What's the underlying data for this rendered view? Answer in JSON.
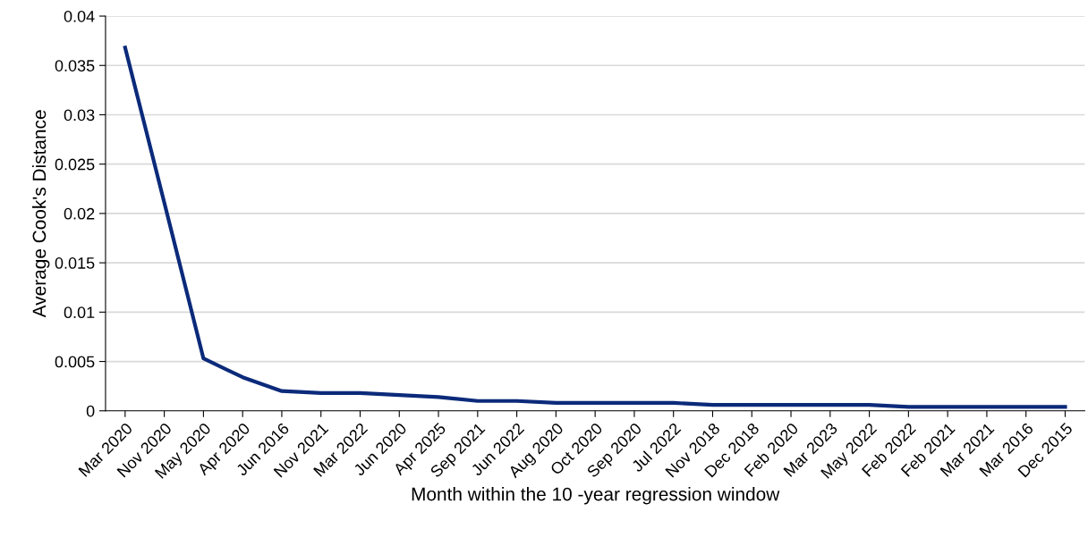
{
  "chart_data": {
    "type": "line",
    "xlabel": "Month within the 10 -year regression window",
    "ylabel": "Average Cook's Distance",
    "categories": [
      "Mar 2020",
      "Nov 2020",
      "May 2020",
      "Apr 2020",
      "Jun 2016",
      "Nov 2021",
      "Mar 2022",
      "Jun 2020",
      "Apr 2025",
      "Sep 2021",
      "Jun 2022",
      "Aug 2020",
      "Oct 2020",
      "Sep 2020",
      "Jul 2022",
      "Nov 2018",
      "Dec 2018",
      "Feb 2020",
      "Mar 2023",
      "May 2022",
      "Feb 2022",
      "Feb 2021",
      "Mar 2021",
      "Mar 2016",
      "Dec 2015"
    ],
    "series": [
      {
        "color": "#0b2a7a",
        "values": [
          0.0368,
          0.0211,
          0.0053,
          0.0034,
          0.002,
          0.0018,
          0.0018,
          0.0016,
          0.0014,
          0.001,
          0.001,
          0.0008,
          0.0008,
          0.0008,
          0.0008,
          0.0006,
          0.0006,
          0.0006,
          0.0006,
          0.0006,
          0.0004,
          0.0004,
          0.0004,
          0.0004,
          0.0004
        ]
      }
    ],
    "ylim": [
      0,
      0.04
    ],
    "yticks": [
      {
        "value": 0,
        "label": "0"
      },
      0.005,
      0.01,
      0.015,
      0.02,
      0.025,
      0.03,
      0.035,
      0.04
    ],
    "grid": "y",
    "legend": false
  }
}
